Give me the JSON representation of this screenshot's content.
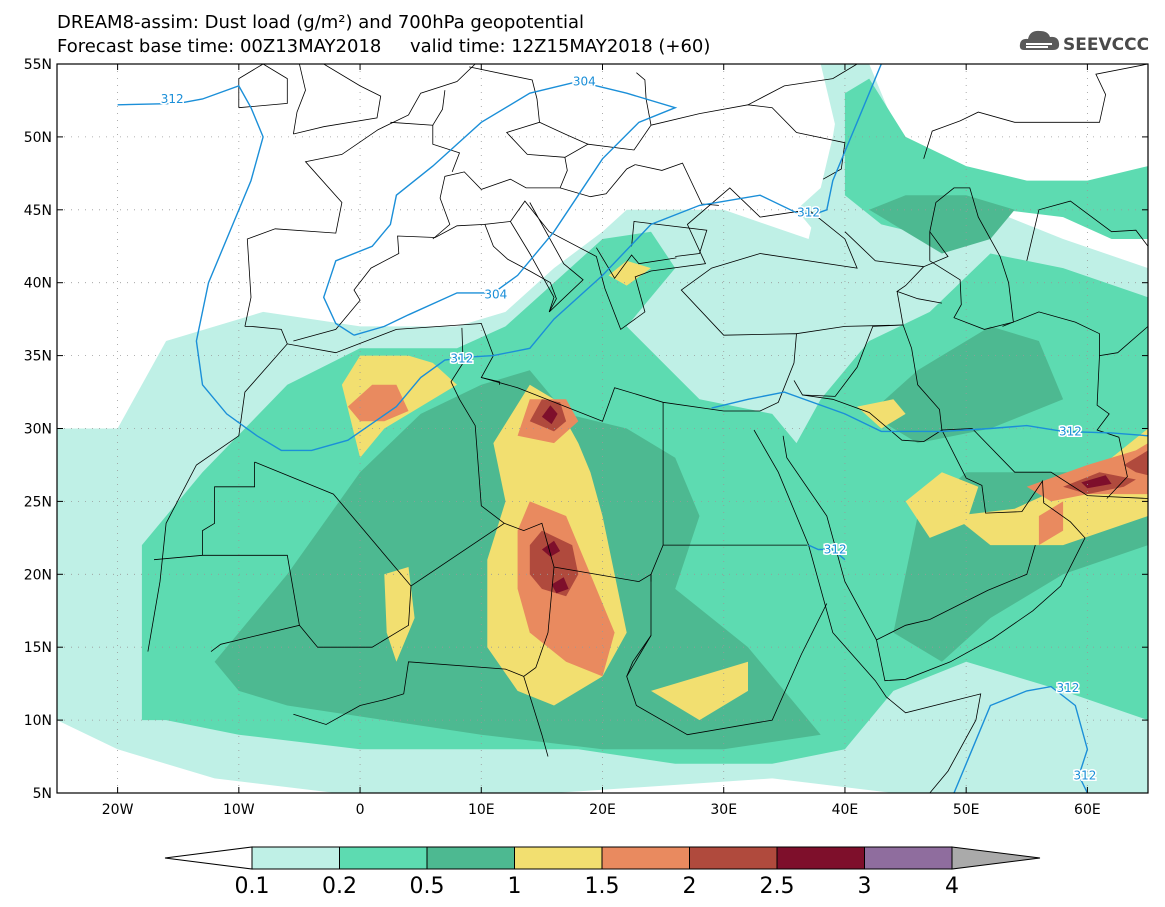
{
  "header": {
    "title_line1": "DREAM8-assim: Dust load (g/m²) and 700hPa geopotential",
    "title_line2": "Forecast base time: 00Z13MAY2018     valid time: 12Z15MAY2018 (+60)",
    "logo_text": "SEEVCCC",
    "logo_icon": "cloud-icon"
  },
  "map": {
    "lon_range": [
      -25,
      65
    ],
    "lat_range": [
      5,
      55
    ],
    "lat_ticks": [
      {
        "value": 55,
        "label": "55N"
      },
      {
        "value": 50,
        "label": "50N"
      },
      {
        "value": 45,
        "label": "45N"
      },
      {
        "value": 40,
        "label": "40N"
      },
      {
        "value": 35,
        "label": "35N"
      },
      {
        "value": 30,
        "label": "30N"
      },
      {
        "value": 25,
        "label": "25N"
      },
      {
        "value": 20,
        "label": "20N"
      },
      {
        "value": 15,
        "label": "15N"
      },
      {
        "value": 10,
        "label": "10N"
      },
      {
        "value": 5,
        "label": "5N"
      }
    ],
    "lon_ticks": [
      {
        "value": -20,
        "label": "20W"
      },
      {
        "value": -10,
        "label": "10W"
      },
      {
        "value": 0,
        "label": "0"
      },
      {
        "value": 10,
        "label": "10E"
      },
      {
        "value": 20,
        "label": "20E"
      },
      {
        "value": 30,
        "label": "30E"
      },
      {
        "value": 40,
        "label": "40E"
      },
      {
        "value": 50,
        "label": "50E"
      },
      {
        "value": 60,
        "label": "60E"
      }
    ],
    "contour_labels": [
      {
        "text": "312",
        "lon": -15.5,
        "lat": 52.6
      },
      {
        "text": "304",
        "lon": 18.5,
        "lat": 53.8
      },
      {
        "text": "312",
        "lon": 37,
        "lat": 44.8
      },
      {
        "text": "304",
        "lon": 11.2,
        "lat": 39.2
      },
      {
        "text": "312",
        "lon": 8.4,
        "lat": 34.8
      },
      {
        "text": "312",
        "lon": 58.6,
        "lat": 29.8
      },
      {
        "text": "312",
        "lon": 39.2,
        "lat": 21.7
      },
      {
        "text": "312",
        "lon": 58.4,
        "lat": 12.2
      },
      {
        "text": "312",
        "lon": 59.8,
        "lat": 6.2
      }
    ]
  },
  "colorbar": {
    "levels": [
      "0.1",
      "0.2",
      "0.5",
      "1",
      "1.5",
      "2",
      "2.5",
      "3",
      "4"
    ],
    "colors": [
      "#bff0e6",
      "#5ddbb1",
      "#4db991",
      "#f2df70",
      "#e98a5f",
      "#b04a3d",
      "#7e0f2b",
      "#8f6d9e"
    ],
    "end_colors": {
      "low": "#ffffff",
      "high": "#aaaaaa"
    }
  }
}
